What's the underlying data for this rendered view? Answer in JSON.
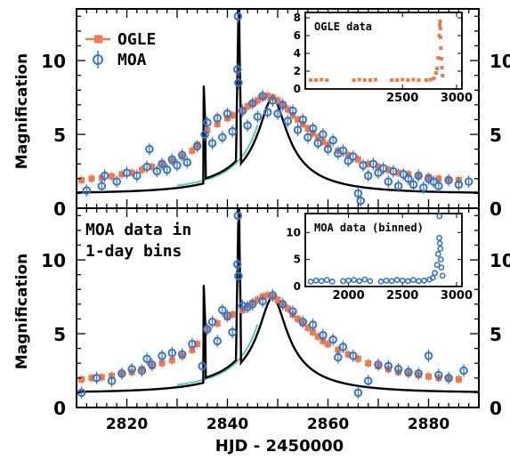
{
  "chart_data": [
    {
      "type": "scatter",
      "panel": "top",
      "ylabel": "Magnification",
      "xlabel": "HJD - 2450000",
      "xlim": [
        2810,
        2890
      ],
      "ylim": [
        0,
        13.5
      ],
      "yticks": [
        0,
        5,
        10
      ],
      "legend": {
        "placement": "top-left",
        "entries": [
          "OGLE",
          "MOA"
        ]
      },
      "series": [
        {
          "name": "OGLE",
          "color": "#f07a4f",
          "marker": "filled-square-errorbar",
          "x": [
            2811,
            2813,
            2815,
            2817,
            2819,
            2821,
            2823,
            2825,
            2827,
            2829,
            2831,
            2833,
            2834,
            2836,
            2838,
            2840,
            2841,
            2843,
            2844,
            2845,
            2846,
            2847,
            2848,
            2849,
            2850,
            2851,
            2852,
            2853,
            2854,
            2855,
            2856,
            2857,
            2858,
            2859,
            2860,
            2862,
            2864,
            2866,
            2868,
            2870,
            2872,
            2874,
            2876,
            2878,
            2880,
            2882,
            2884,
            2886
          ],
          "y": [
            1.9,
            2.0,
            2.05,
            2.15,
            2.3,
            2.4,
            2.6,
            2.8,
            3.0,
            3.2,
            3.5,
            3.9,
            4.3,
            5.3,
            5.7,
            6.1,
            6.3,
            6.6,
            6.9,
            7.1,
            7.3,
            7.5,
            7.6,
            7.5,
            7.3,
            7.0,
            6.7,
            6.3,
            6.0,
            5.7,
            5.4,
            5.1,
            4.8,
            4.5,
            4.3,
            3.9,
            3.6,
            3.3,
            3.0,
            2.8,
            2.6,
            2.4,
            2.3,
            2.2,
            2.1,
            2.0,
            1.95,
            1.9
          ]
        },
        {
          "name": "MOA",
          "color": "#3a76c4",
          "marker": "open-circle-errorbar",
          "x": [
            2812,
            2815,
            2815.6,
            2818,
            2820,
            2822,
            2824,
            2824.5,
            2826,
            2827,
            2828,
            2829,
            2830,
            2831,
            2832,
            2834,
            2835.5,
            2836,
            2837,
            2838,
            2839,
            2840,
            2841,
            2842,
            2842.1,
            2842.2,
            2843,
            2844,
            2845,
            2846,
            2847,
            2848,
            2849,
            2850,
            2851,
            2852,
            2853,
            2854,
            2855,
            2856,
            2857,
            2858,
            2859,
            2860,
            2861,
            2862,
            2863,
            2864,
            2865,
            2866,
            2866.5,
            2867,
            2868,
            2869,
            2870,
            2871,
            2872,
            2873,
            2874,
            2875,
            2876,
            2877,
            2878,
            2879,
            2880,
            2881,
            2882,
            2884,
            2886,
            2888
          ],
          "y": [
            1.2,
            1.5,
            2.2,
            1.8,
            2.4,
            2.2,
            2.8,
            4.0,
            2.5,
            3.0,
            2.6,
            3.3,
            2.9,
            3.6,
            3.1,
            4.2,
            5.0,
            5.8,
            4.4,
            6.1,
            4.8,
            6.4,
            5.2,
            9.4,
            13.0,
            8.5,
            6.6,
            5.6,
            7.1,
            6.2,
            7.6,
            6.5,
            7.3,
            6.4,
            7.0,
            5.9,
            6.6,
            5.3,
            6.0,
            4.8,
            5.4,
            4.4,
            5.0,
            4.0,
            4.6,
            3.7,
            3.9,
            3.2,
            3.5,
            1.0,
            0.5,
            2.9,
            2.2,
            3.0,
            2.4,
            2.7,
            1.8,
            2.5,
            1.5,
            2.3,
            2.0,
            1.6,
            2.2,
            1.4,
            2.0,
            1.8,
            1.5,
            1.9,
            1.6,
            1.8
          ]
        }
      ],
      "model_curves": [
        "black model",
        "teal model"
      ],
      "inset": {
        "title": "OGLE data",
        "xlim": [
          1600,
          3050
        ],
        "ylim": [
          0,
          8.6
        ],
        "xticks": [
          2500,
          3000
        ],
        "yticks": [
          0,
          2,
          4,
          6,
          8
        ],
        "series": [
          {
            "name": "OGLE",
            "color": "#f07a4f",
            "x": [
              1650,
              1700,
              1750,
              1800,
              2050,
              2100,
              2150,
              2200,
              2250,
              2400,
              2450,
              2500,
              2550,
              2600,
              2650,
              2720,
              2760,
              2790,
              2810,
              2820,
              2830,
              2840,
              2845,
              2848,
              2850,
              2852,
              2855,
              2860,
              2865,
              2870
            ],
            "y": [
              1.0,
              1.0,
              1.05,
              1.0,
              1.0,
              1.05,
              1.0,
              1.0,
              1.05,
              1.0,
              1.0,
              1.05,
              1.0,
              1.05,
              1.0,
              1.0,
              1.05,
              1.2,
              1.8,
              2.3,
              3.5,
              6.0,
              7.2,
              7.6,
              6.8,
              5.8,
              4.6,
              3.4,
              2.4,
              1.5
            ]
          }
        ]
      }
    },
    {
      "type": "scatter",
      "panel": "bottom",
      "annotation": "MOA data in 1-day bins",
      "ylabel": "Magnification",
      "xlabel": "HJD - 2450000",
      "xlim": [
        2810,
        2890
      ],
      "xticks": [
        2820,
        2840,
        2860,
        2880
      ],
      "ylim": [
        0,
        13.5
      ],
      "yticks": [
        0,
        5,
        10
      ],
      "series": [
        {
          "name": "OGLE",
          "color": "#f07a4f",
          "marker": "filled-square-errorbar",
          "x": [
            2811,
            2813,
            2815,
            2817,
            2819,
            2821,
            2823,
            2825,
            2827,
            2829,
            2831,
            2833,
            2834,
            2836,
            2838,
            2840,
            2841,
            2843,
            2844,
            2845,
            2846,
            2847,
            2848,
            2849,
            2850,
            2851,
            2852,
            2853,
            2854,
            2855,
            2856,
            2857,
            2858,
            2859,
            2860,
            2862,
            2864,
            2866,
            2868,
            2870,
            2872,
            2874,
            2876,
            2878,
            2880,
            2882,
            2884,
            2886
          ],
          "y": [
            1.9,
            2.0,
            2.05,
            2.15,
            2.3,
            2.4,
            2.6,
            2.8,
            3.0,
            3.2,
            3.5,
            3.9,
            4.3,
            5.3,
            5.7,
            6.1,
            6.3,
            6.6,
            6.9,
            7.1,
            7.3,
            7.5,
            7.6,
            7.5,
            7.3,
            7.0,
            6.7,
            6.3,
            6.0,
            5.7,
            5.4,
            5.1,
            4.8,
            4.5,
            4.3,
            3.9,
            3.6,
            3.3,
            3.0,
            2.8,
            2.6,
            2.4,
            2.3,
            2.2,
            2.1,
            2.0,
            1.95,
            1.9
          ]
        },
        {
          "name": "MOA",
          "color": "#3a76c4",
          "marker": "open-circle-errorbar",
          "x": [
            2811,
            2814,
            2817,
            2819,
            2821,
            2823,
            2824,
            2825,
            2827,
            2829,
            2831,
            2833,
            2835,
            2836,
            2837,
            2838,
            2839,
            2840,
            2841,
            2842,
            2842.1,
            2842.2,
            2843,
            2844,
            2845,
            2847,
            2849,
            2851,
            2853,
            2855,
            2857,
            2859,
            2861,
            2862,
            2863,
            2865,
            2866,
            2868,
            2870,
            2872,
            2874,
            2876,
            2878,
            2880,
            2882,
            2884,
            2887
          ],
          "y": [
            1.0,
            2.0,
            1.8,
            2.3,
            2.6,
            2.5,
            3.3,
            2.9,
            3.5,
            3.7,
            3.6,
            4.3,
            2.8,
            5.3,
            5.8,
            4.5,
            6.6,
            6.2,
            5.1,
            9.7,
            13.0,
            8.9,
            6.9,
            6.8,
            7.0,
            7.2,
            7.6,
            7.0,
            6.5,
            5.8,
            5.6,
            4.9,
            4.6,
            3.4,
            4.1,
            3.5,
            1.0,
            1.8,
            2.9,
            2.8,
            2.6,
            2.4,
            2.3,
            3.5,
            2.2,
            2.0,
            2.5
          ]
        }
      ],
      "model_curves": [
        "black model",
        "teal model"
      ],
      "inset": {
        "title": "MOA data (binned)",
        "xlim": [
          1600,
          3050
        ],
        "ylim": [
          0,
          13.5
        ],
        "xticks": [
          2000,
          2500,
          3000
        ],
        "yticks": [
          0,
          5,
          10
        ],
        "series": [
          {
            "name": "MOA",
            "color": "#3a76c4",
            "x": [
              1650,
              1700,
              1750,
              1800,
              1850,
              1950,
              2000,
              2050,
              2100,
              2150,
              2200,
              2300,
              2350,
              2400,
              2450,
              2500,
              2550,
              2600,
              2650,
              2700,
              2750,
              2780,
              2800,
              2820,
              2830,
              2840,
              2842,
              2845,
              2850,
              2855,
              2860,
              2870
            ],
            "y": [
              0.9,
              1.1,
              1.0,
              1.2,
              0.9,
              1.0,
              1.1,
              1.2,
              1.0,
              1.3,
              1.0,
              0.9,
              1.1,
              1.0,
              1.2,
              1.1,
              1.0,
              1.2,
              1.0,
              1.1,
              1.3,
              1.6,
              2.5,
              4.0,
              6.0,
              9.0,
              13.0,
              8.0,
              7.0,
              5.0,
              3.5,
              2.0
            ]
          }
        ]
      }
    }
  ]
}
